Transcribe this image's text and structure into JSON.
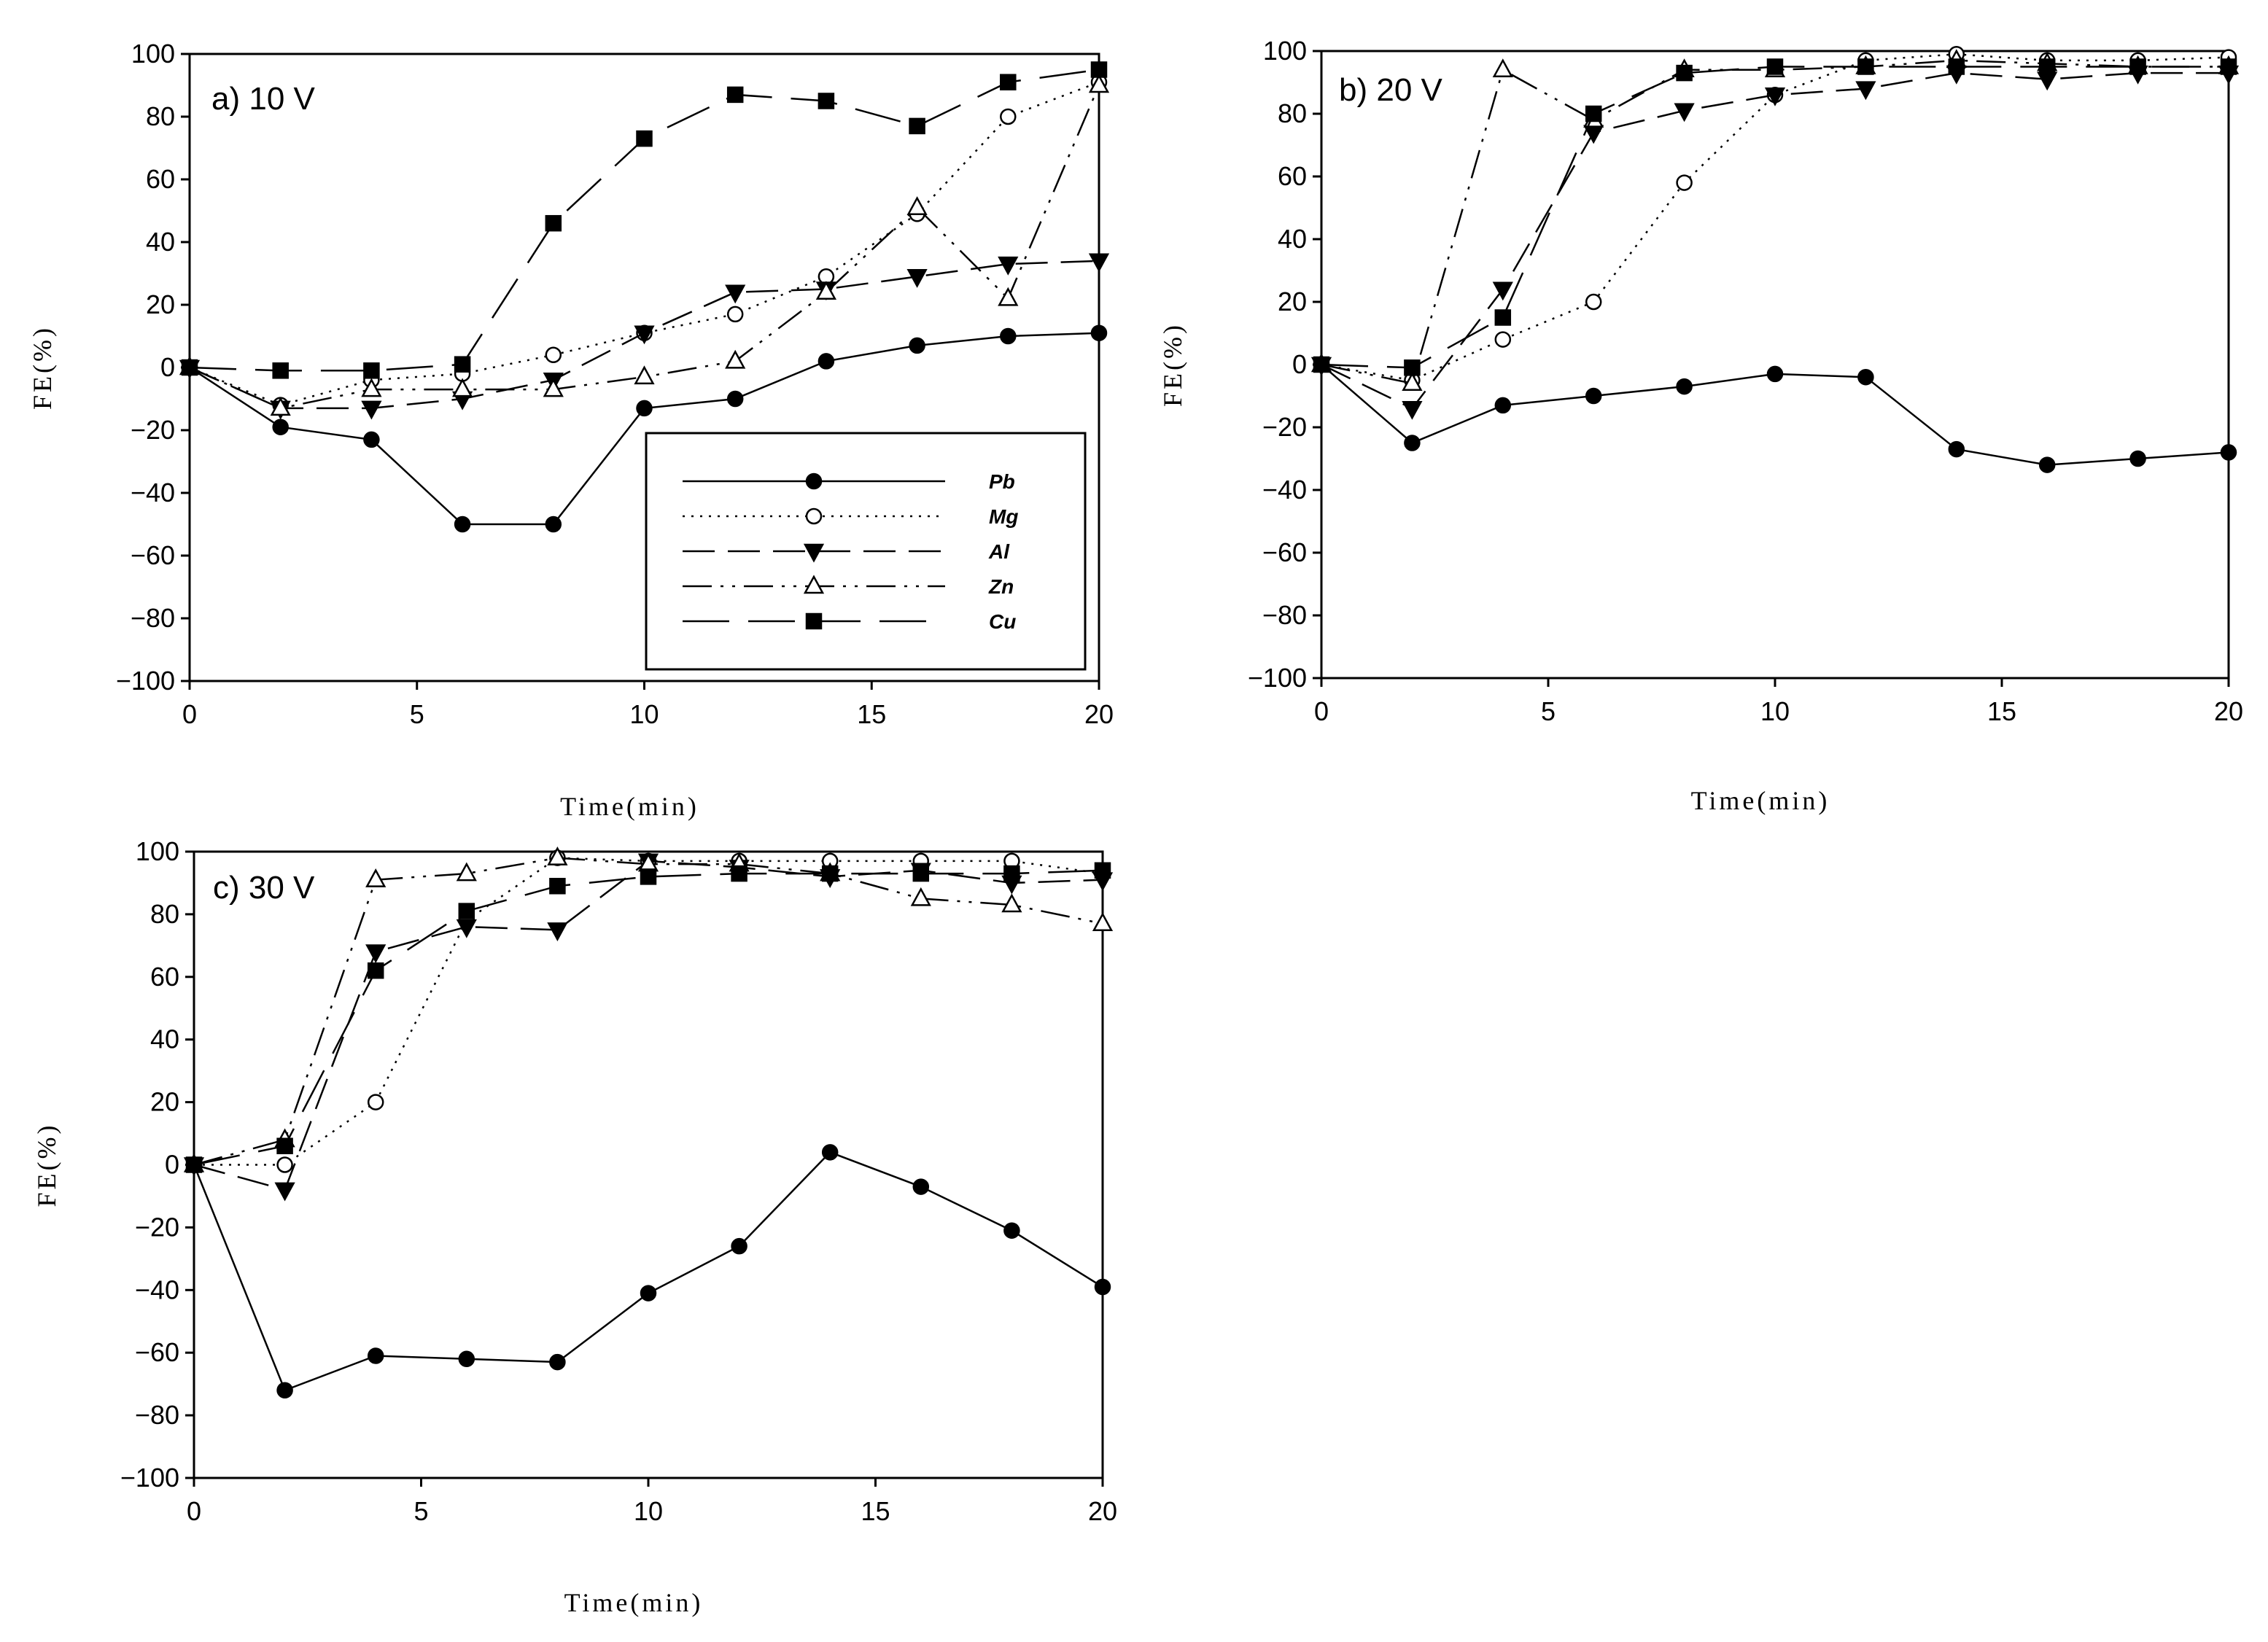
{
  "chart_data": [
    {
      "type": "line",
      "title": "a) 10 V",
      "xlabel": "Time(min)",
      "ylabel": "FE(%)",
      "xlim": [
        0,
        20
      ],
      "ylim": [
        -100,
        100
      ],
      "xticks": [
        0,
        5,
        10,
        15,
        20
      ],
      "yticks": [
        -100,
        -80,
        -60,
        -40,
        -20,
        0,
        20,
        40,
        60,
        80,
        100
      ],
      "legend_position": "lower-right",
      "series": [
        {
          "name": "Pb",
          "x": [
            0,
            2,
            4,
            6,
            8,
            10,
            12,
            14,
            16,
            18,
            20
          ],
          "values": [
            0,
            -19,
            -23,
            -50,
            -50,
            -13,
            -10,
            2,
            7,
            10,
            11
          ]
        },
        {
          "name": "Mg",
          "x": [
            0,
            2,
            4,
            6,
            8,
            10,
            12,
            14,
            16,
            18,
            20
          ],
          "values": [
            0,
            -12,
            -4,
            -2,
            4,
            11,
            17,
            29,
            49,
            80,
            91
          ]
        },
        {
          "name": "Al",
          "x": [
            0,
            2,
            4,
            6,
            8,
            10,
            12,
            14,
            16,
            18,
            20
          ],
          "values": [
            0,
            -13,
            -13,
            -10,
            -4,
            11,
            24,
            25,
            29,
            33,
            34
          ]
        },
        {
          "name": "Zn",
          "x": [
            0,
            2,
            4,
            6,
            8,
            10,
            12,
            14,
            16,
            18,
            20
          ],
          "values": [
            0,
            -13,
            -7,
            -7,
            -7,
            -3,
            2,
            24,
            51,
            22,
            90
          ]
        },
        {
          "name": "Cu",
          "x": [
            0,
            2,
            4,
            6,
            8,
            10,
            12,
            14,
            16,
            18,
            20
          ],
          "values": [
            0,
            -1,
            -1,
            1,
            46,
            73,
            87,
            85,
            77,
            91,
            95
          ]
        }
      ]
    },
    {
      "type": "line",
      "title": "b) 20 V",
      "xlabel": "Time(min)",
      "ylabel": "FE(%)",
      "xlim": [
        0,
        20
      ],
      "ylim": [
        -100,
        100
      ],
      "xticks": [
        0,
        5,
        10,
        15,
        20
      ],
      "yticks": [
        -100,
        -80,
        -60,
        -40,
        -20,
        0,
        20,
        40,
        60,
        80,
        100
      ],
      "series": [
        {
          "name": "Pb",
          "x": [
            0,
            2,
            4,
            6,
            8,
            10,
            12,
            14,
            16,
            18,
            20
          ],
          "values": [
            0,
            -25,
            -13,
            -10,
            -7,
            -3,
            -4,
            -27,
            -32,
            -30,
            -28
          ]
        },
        {
          "name": "Mg",
          "x": [
            0,
            2,
            4,
            6,
            8,
            10,
            12,
            14,
            16,
            18,
            20
          ],
          "values": [
            0,
            -5,
            8,
            20,
            58,
            86,
            97,
            99,
            97,
            97,
            98
          ]
        },
        {
          "name": "Al",
          "x": [
            0,
            2,
            4,
            6,
            8,
            10,
            12,
            14,
            16,
            18,
            20
          ],
          "values": [
            0,
            -14,
            24,
            74,
            81,
            86,
            88,
            93,
            91,
            93,
            93
          ]
        },
        {
          "name": "Zn",
          "x": [
            0,
            2,
            4,
            6,
            8,
            10,
            12,
            14,
            16,
            18,
            20
          ],
          "values": [
            0,
            -6,
            94,
            78,
            94,
            94,
            95,
            97,
            96,
            95,
            95
          ]
        },
        {
          "name": "Cu",
          "x": [
            0,
            2,
            4,
            6,
            8,
            10,
            12,
            14,
            16,
            18,
            20
          ],
          "values": [
            0,
            -1,
            15,
            80,
            93,
            95,
            95,
            95,
            95,
            95,
            95
          ]
        }
      ]
    },
    {
      "type": "line",
      "title": "c) 30 V",
      "xlabel": "Time(min)",
      "ylabel": "FE(%)",
      "xlim": [
        0,
        20
      ],
      "ylim": [
        -100,
        100
      ],
      "xticks": [
        0,
        5,
        10,
        15,
        20
      ],
      "yticks": [
        -100,
        -80,
        -60,
        -40,
        -20,
        0,
        20,
        40,
        60,
        80,
        100
      ],
      "series": [
        {
          "name": "Pb",
          "x": [
            0,
            2,
            4,
            6,
            8,
            10,
            12,
            14,
            16,
            18,
            20
          ],
          "values": [
            0,
            -72,
            -61,
            -62,
            -63,
            -41,
            -26,
            4,
            -7,
            -21,
            -39
          ]
        },
        {
          "name": "Mg",
          "x": [
            0,
            2,
            4,
            6,
            8,
            10,
            12,
            14,
            16,
            18,
            20
          ],
          "values": [
            0,
            0,
            20,
            78,
            98,
            97,
            97,
            97,
            97,
            97,
            93
          ]
        },
        {
          "name": "Al",
          "x": [
            0,
            2,
            4,
            6,
            8,
            10,
            12,
            14,
            16,
            18,
            20
          ],
          "values": [
            0,
            -8,
            68,
            76,
            75,
            97,
            95,
            92,
            94,
            90,
            91
          ]
        },
        {
          "name": "Zn",
          "x": [
            0,
            2,
            4,
            6,
            8,
            10,
            12,
            14,
            16,
            18,
            20
          ],
          "values": [
            0,
            8,
            91,
            93,
            98,
            96,
            96,
            93,
            85,
            83,
            77
          ]
        },
        {
          "name": "Cu",
          "x": [
            0,
            2,
            4,
            6,
            8,
            10,
            12,
            14,
            16,
            18,
            20
          ],
          "values": [
            0,
            6,
            62,
            81,
            89,
            92,
            93,
            93,
            93,
            93,
            94
          ]
        }
      ]
    }
  ]
}
